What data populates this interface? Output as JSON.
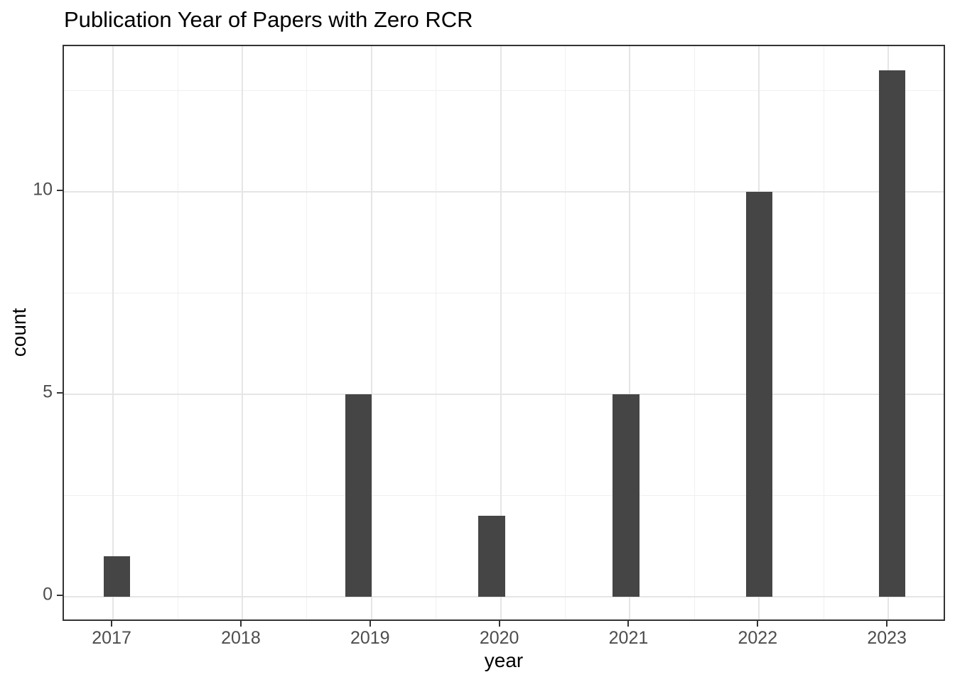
{
  "chart_data": {
    "type": "bar",
    "subtype": "histogram",
    "title": "Publication Year of Papers with Zero RCR",
    "xlabel": "year",
    "ylabel": "count",
    "categories": [
      "2017",
      "2018",
      "2019",
      "2020",
      "2021",
      "2022",
      "2023"
    ],
    "values": [
      1,
      0,
      5,
      2,
      5,
      10,
      13
    ],
    "bars": [
      {
        "x": 2017.03,
        "count": 1
      },
      {
        "x": 2018.9,
        "count": 5
      },
      {
        "x": 2019.93,
        "count": 2
      },
      {
        "x": 2020.97,
        "count": 5
      },
      {
        "x": 2022.0,
        "count": 10
      },
      {
        "x": 2023.03,
        "count": 13
      }
    ],
    "bin_width_years": 0.207,
    "x_tick_years": [
      2017,
      2018,
      2019,
      2020,
      2021,
      2022,
      2023
    ],
    "x_minor_years": [
      2017.5,
      2018.5,
      2019.5,
      2020.5,
      2021.5,
      2022.5
    ],
    "y_ticks": [
      0,
      5,
      10
    ],
    "y_minor": [
      2.5,
      7.5,
      12.5
    ],
    "xlim": [
      2016.62,
      2023.45
    ],
    "ylim": [
      -0.64,
      13.6
    ],
    "grid": true,
    "legend": "none",
    "colors": {
      "bar_fill": "#454545",
      "grid_major": "#e5e5e5",
      "grid_minor": "#f0f0f0",
      "panel_border": "#333333",
      "tick_mark": "#333333",
      "axis_text": "#4d4d4d",
      "title_text": "#000000",
      "background": "#ffffff"
    }
  }
}
